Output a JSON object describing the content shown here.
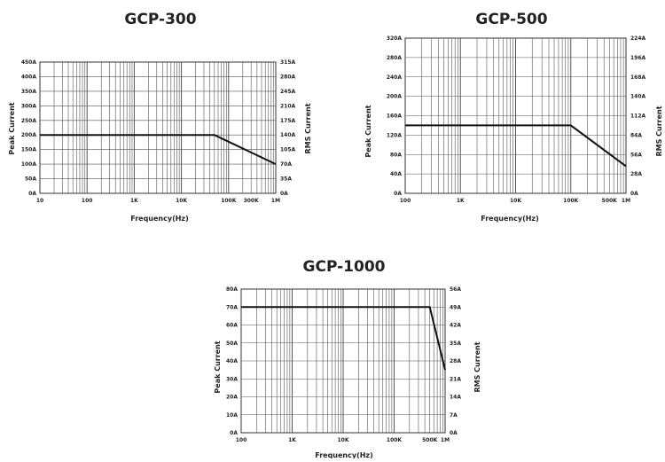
{
  "chart_data": [
    {
      "type": "line",
      "title": "GCP-300",
      "xlabel": "Frequency(Hz)",
      "ylabel": "Peak Current",
      "ylabel_right": "RMS Current",
      "x_scale": "log",
      "xlim": [
        10,
        1000000
      ],
      "x_ticks": [
        10,
        100,
        1000,
        10000,
        100000,
        300000,
        1000000
      ],
      "x_tick_labels": [
        "10",
        "100",
        "1K",
        "10K",
        "100K",
        "300K",
        "1M"
      ],
      "ylim": [
        0,
        450
      ],
      "y_ticks": [
        0,
        50,
        100,
        150,
        200,
        250,
        300,
        350,
        400,
        450
      ],
      "y_tick_labels": [
        "0A",
        "50A",
        "100A",
        "150A",
        "200A",
        "250A",
        "300A",
        "350A",
        "400A",
        "450A"
      ],
      "y2_ticks": [
        0,
        50,
        100,
        150,
        200,
        250,
        300,
        350,
        400,
        450
      ],
      "y2_tick_labels": [
        "0A",
        "35A",
        "70A",
        "105A",
        "140A",
        "175A",
        "210A",
        "245A",
        "280A",
        "315A"
      ],
      "grid": true,
      "series": [
        {
          "x": [
            10,
            50000,
            1000000
          ],
          "y": [
            200,
            200,
            100
          ]
        }
      ]
    },
    {
      "type": "line",
      "title": "GCP-500",
      "xlabel": "Frequency(Hz)",
      "ylabel": "Peak Current",
      "ylabel_right": "RMS Current",
      "x_scale": "log",
      "xlim": [
        100,
        1000000
      ],
      "x_ticks": [
        100,
        1000,
        10000,
        100000,
        500000,
        1000000
      ],
      "x_tick_labels": [
        "100",
        "1K",
        "10K",
        "100K",
        "500K",
        "1M"
      ],
      "ylim": [
        0,
        320
      ],
      "y_ticks": [
        0,
        40,
        80,
        120,
        160,
        200,
        240,
        280,
        320
      ],
      "y_tick_labels": [
        "0A",
        "40A",
        "80A",
        "120A",
        "160A",
        "200A",
        "240A",
        "280A",
        "320A"
      ],
      "y2_ticks": [
        0,
        40,
        80,
        120,
        160,
        200,
        240,
        280,
        320
      ],
      "y2_tick_labels": [
        "0A",
        "28A",
        "56A",
        "84A",
        "112A",
        "140A",
        "168A",
        "196A",
        "224A"
      ],
      "grid": true,
      "series": [
        {
          "x": [
            100,
            100000,
            1000000
          ],
          "y": [
            140,
            140,
            56
          ]
        }
      ]
    },
    {
      "type": "line",
      "title": "GCP-1000",
      "xlabel": "Frequency(Hz)",
      "ylabel": "Peak Current",
      "ylabel_right": "RMS Current",
      "x_scale": "log",
      "xlim": [
        100,
        1000000
      ],
      "x_ticks": [
        100,
        1000,
        10000,
        100000,
        500000,
        1000000
      ],
      "x_tick_labels": [
        "100",
        "1K",
        "10K",
        "100K",
        "500K",
        "1M"
      ],
      "ylim": [
        0,
        80
      ],
      "y_ticks": [
        0,
        10,
        20,
        30,
        40,
        50,
        60,
        70,
        80
      ],
      "y_tick_labels": [
        "0A",
        "10A",
        "20A",
        "30A",
        "40A",
        "50A",
        "60A",
        "70A",
        "80A"
      ],
      "y2_ticks": [
        0,
        10,
        20,
        30,
        40,
        50,
        60,
        70,
        80
      ],
      "y2_tick_labels": [
        "0A",
        "7A",
        "14A",
        "21A",
        "28A",
        "35A",
        "42A",
        "49A",
        "56A"
      ],
      "grid": true,
      "series": [
        {
          "x": [
            100,
            500000,
            1000000
          ],
          "y": [
            70,
            70,
            35
          ]
        }
      ]
    }
  ]
}
